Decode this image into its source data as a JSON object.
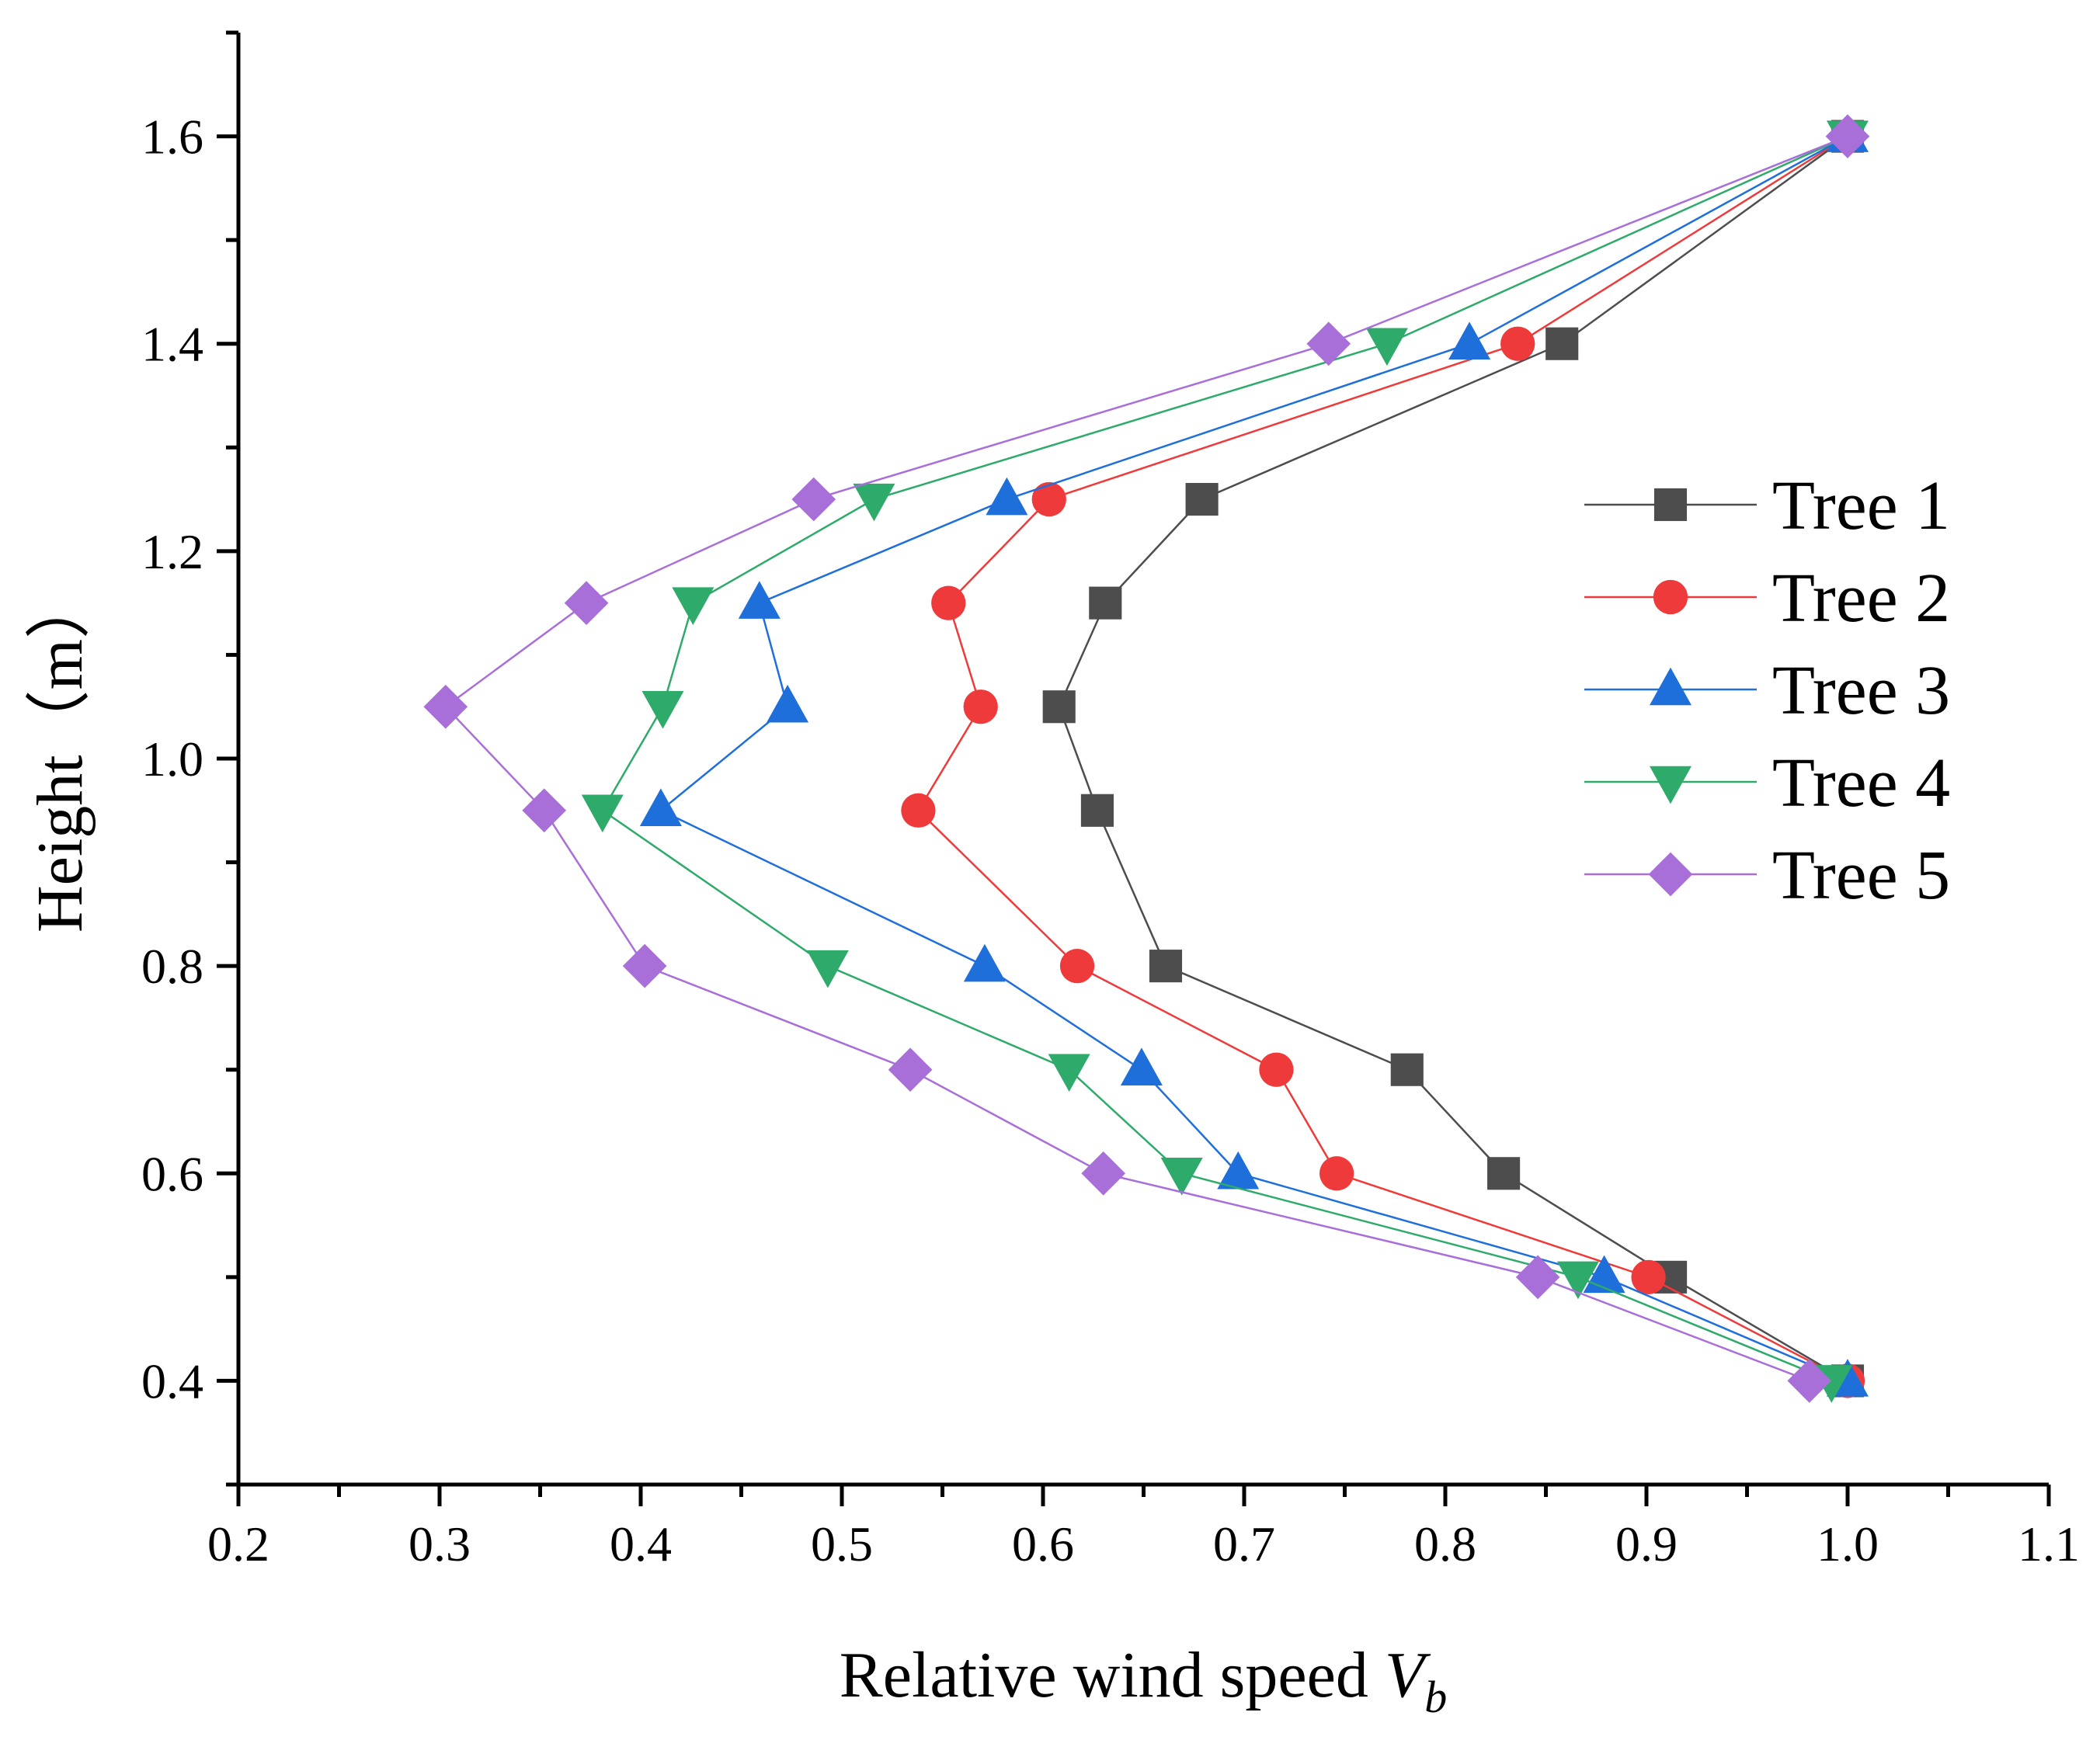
{
  "chart_data": {
    "type": "line",
    "title": "",
    "xlabel": "Relative wind speed ",
    "xlabel_var": "V",
    "xlabel_sub": "b",
    "ylabel": "Height（m）",
    "xlim": [
      0.2,
      1.1
    ],
    "ylim": [
      0.3,
      1.7
    ],
    "xticks": [
      "0.2",
      "0.3",
      "0.4",
      "0.5",
      "0.6",
      "0.7",
      "0.8",
      "0.9",
      "1.0",
      "1.1"
    ],
    "yticks": [
      "0.4",
      "0.6",
      "0.8",
      "1.0",
      "1.2",
      "1.4",
      "1.6"
    ],
    "grid": false,
    "legend_position": "right",
    "y": [
      0.4,
      0.5,
      0.6,
      0.7,
      0.8,
      0.95,
      1.05,
      1.15,
      1.25,
      1.4,
      1.6
    ],
    "series": [
      {
        "name": "Tree 1",
        "marker": "square",
        "color": "#4d4d4d",
        "x": [
          1.0,
          0.912,
          0.829,
          0.781,
          0.661,
          0.627,
          0.608,
          0.631,
          0.679,
          0.858,
          1.0
        ]
      },
      {
        "name": "Tree 2",
        "marker": "circle",
        "color": "#ee3a3a",
        "x": [
          1.0,
          0.901,
          0.746,
          0.716,
          0.617,
          0.538,
          0.569,
          0.553,
          0.603,
          0.836,
          1.0
        ]
      },
      {
        "name": "Tree 3",
        "marker": "triangle-up",
        "color": "#1f6fdb",
        "x": [
          1.0,
          0.879,
          0.697,
          0.649,
          0.571,
          0.41,
          0.473,
          0.459,
          0.582,
          0.812,
          1.0
        ]
      },
      {
        "name": "Tree 4",
        "marker": "triangle-down",
        "color": "#2eaa6a",
        "x": [
          0.992,
          0.866,
          0.669,
          0.613,
          0.493,
          0.381,
          0.411,
          0.426,
          0.516,
          0.771,
          1.0
        ]
      },
      {
        "name": "Tree 5",
        "marker": "diamond",
        "color": "#a96fd9",
        "x": [
          0.981,
          0.846,
          0.63,
          0.534,
          0.402,
          0.352,
          0.303,
          0.373,
          0.486,
          0.742,
          1.0
        ]
      }
    ]
  }
}
